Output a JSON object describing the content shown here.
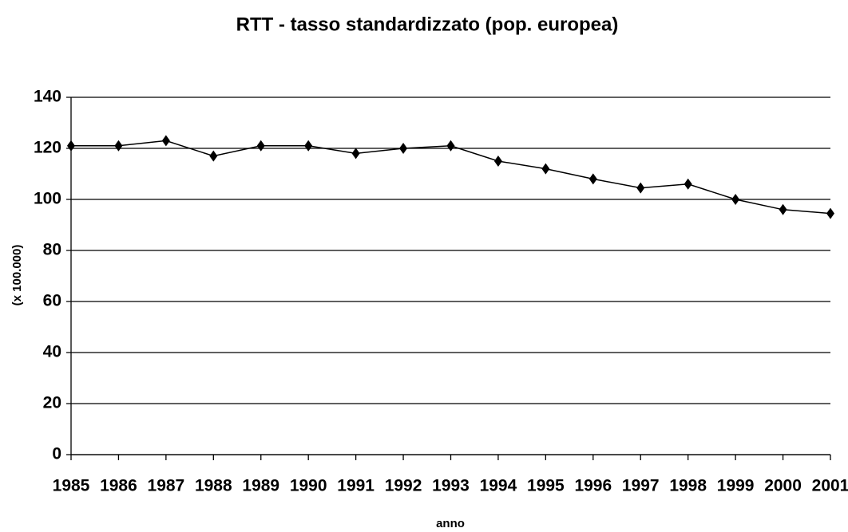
{
  "chart_data": {
    "type": "line",
    "title": "RTT - tasso standardizzato (pop. europea)",
    "x_label": "anno",
    "y_label": "(x 100.000)",
    "x": [
      1985,
      1986,
      1987,
      1988,
      1989,
      1990,
      1991,
      1992,
      1993,
      1994,
      1995,
      1996,
      1997,
      1998,
      1999,
      2000,
      2001
    ],
    "series": [
      {
        "name": "RTT",
        "color": "#000000",
        "values": [
          121,
          121,
          123,
          117,
          121,
          121,
          118,
          120,
          121,
          115,
          112,
          108,
          104.5,
          106,
          100,
          96,
          94.5
        ]
      }
    ],
    "xlim": [
      1985,
      2001
    ],
    "xticks": [
      1985,
      1986,
      1987,
      1988,
      1989,
      1990,
      1991,
      1992,
      1993,
      1994,
      1995,
      1996,
      1997,
      1998,
      1999,
      2000,
      2001
    ],
    "ylim": [
      0,
      140
    ],
    "yticks": [
      0,
      20,
      40,
      60,
      80,
      100,
      120,
      140
    ],
    "grid": true,
    "marker": "diamond"
  }
}
